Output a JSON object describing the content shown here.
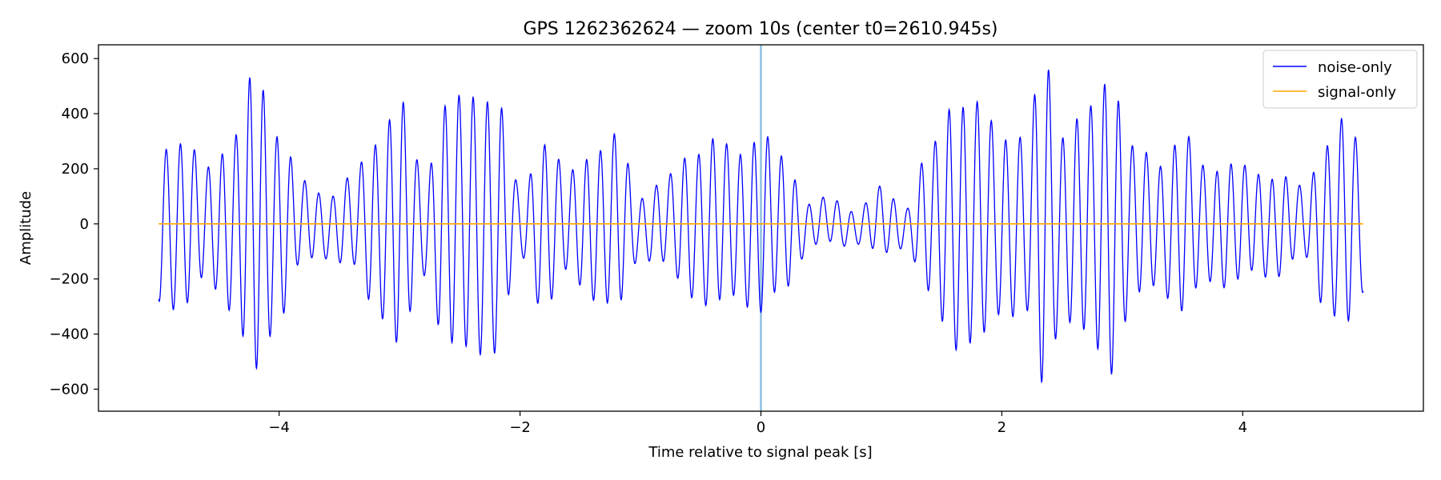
{
  "chart_data": {
    "type": "line",
    "title": "GPS 1262362624 — zoom 10s (center t0=2610.945s)",
    "xlabel": "Time relative to signal peak [s]",
    "ylabel": "Amplitude",
    "xlim": [
      -5.5,
      5.5
    ],
    "ylim": [
      -680,
      650
    ],
    "xticks": [
      -4,
      -2,
      0,
      2,
      4
    ],
    "xtick_labels": [
      "−4",
      "−2",
      "0",
      "2",
      "4"
    ],
    "yticks": [
      -600,
      -400,
      -200,
      0,
      200,
      400,
      600
    ],
    "ytick_labels": [
      "−600",
      "−400",
      "−200",
      "0",
      "200",
      "400",
      "600"
    ],
    "grid": false,
    "legend_position": "top-right",
    "marker_line": {
      "x": 0,
      "color": "#8fbfe0"
    },
    "series": [
      {
        "name": "noise-only",
        "color": "#0000ff",
        "carrier_hz": 8.6,
        "envelope": [
          [
            -5.0,
            280
          ],
          [
            -4.8,
            300
          ],
          [
            -4.6,
            200
          ],
          [
            -4.4,
            300
          ],
          [
            -4.2,
            540
          ],
          [
            -4.0,
            330
          ],
          [
            -3.8,
            140
          ],
          [
            -3.6,
            110
          ],
          [
            -3.4,
            160
          ],
          [
            -3.2,
            300
          ],
          [
            -3.0,
            440
          ],
          [
            -2.8,
            180
          ],
          [
            -2.6,
            440
          ],
          [
            -2.4,
            460
          ],
          [
            -2.2,
            460
          ],
          [
            -2.0,
            120
          ],
          [
            -1.8,
            300
          ],
          [
            -1.6,
            180
          ],
          [
            -1.4,
            260
          ],
          [
            -1.2,
            310
          ],
          [
            -1.0,
            110
          ],
          [
            -0.8,
            150
          ],
          [
            -0.6,
            250
          ],
          [
            -0.4,
            300
          ],
          [
            -0.2,
            260
          ],
          [
            0.0,
            320
          ],
          [
            0.2,
            230
          ],
          [
            0.4,
            80
          ],
          [
            0.6,
            80
          ],
          [
            0.8,
            60
          ],
          [
            1.0,
            120
          ],
          [
            1.2,
            70
          ],
          [
            1.4,
            260
          ],
          [
            1.6,
            440
          ],
          [
            1.8,
            430
          ],
          [
            2.0,
            320
          ],
          [
            2.2,
            320
          ],
          [
            2.35,
            600
          ],
          [
            2.5,
            330
          ],
          [
            2.7,
            400
          ],
          [
            2.9,
            530
          ],
          [
            3.1,
            270
          ],
          [
            3.3,
            220
          ],
          [
            3.5,
            320
          ],
          [
            3.7,
            200
          ],
          [
            3.9,
            220
          ],
          [
            4.1,
            180
          ],
          [
            4.3,
            180
          ],
          [
            4.5,
            120
          ],
          [
            4.7,
            300
          ],
          [
            4.85,
            380
          ],
          [
            5.0,
            250
          ]
        ]
      },
      {
        "name": "signal-only",
        "color": "#ffa500",
        "x": [
          -5.0,
          5.0
        ],
        "y": [
          0,
          0
        ]
      }
    ]
  }
}
